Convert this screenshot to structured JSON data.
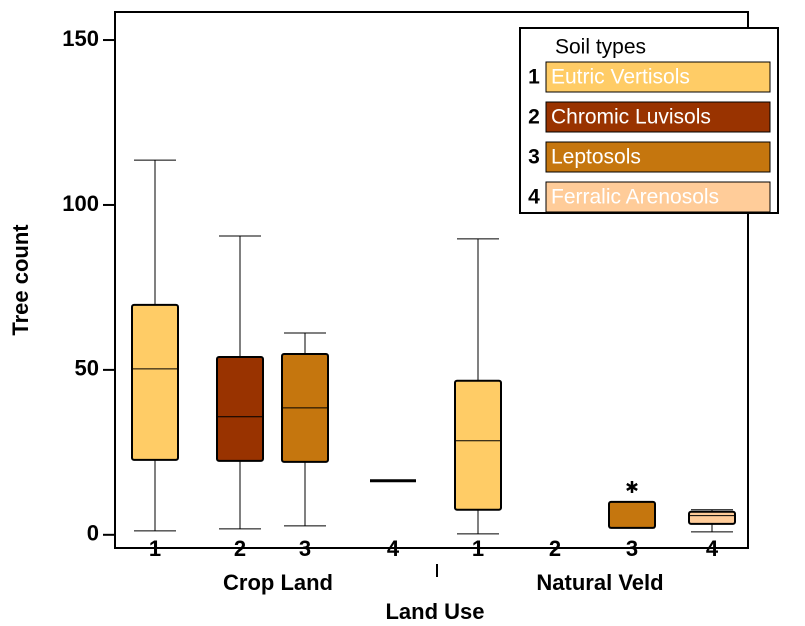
{
  "chart_data": {
    "type": "box",
    "x_label": "Land Use",
    "y_label": "Tree count",
    "ylim": [
      -4,
      158.5
    ],
    "yticks": [
      0,
      50,
      100,
      150
    ],
    "categories": [
      "1",
      "2",
      "3",
      "4",
      "1",
      "2",
      "3",
      "4"
    ],
    "group_labels": [
      "Crop Land",
      "Natural Veld"
    ],
    "boxes": [
      {
        "min": 1.2,
        "q1": 22.7,
        "median": 50.3,
        "q3": 69.7,
        "max": 113.6,
        "outliers": [],
        "color": "#ffcc66"
      },
      {
        "min": 1.8,
        "q1": 22.4,
        "median": 35.8,
        "q3": 53.9,
        "max": 90.6,
        "outliers": [],
        "color": "#993300"
      },
      {
        "min": 2.7,
        "q1": 22.1,
        "median": 38.5,
        "q3": 54.8,
        "max": 61.2,
        "outliers": [],
        "color": "#c5760e"
      },
      {
        "min": 16.4,
        "q1": 16.4,
        "median": 16.4,
        "q3": 16.4,
        "max": 16.4,
        "outliers": [],
        "color": "#ffcc99"
      },
      {
        "min": 0.3,
        "q1": 7.6,
        "median": 28.5,
        "q3": 46.7,
        "max": 89.7,
        "outliers": [],
        "color": "#ffcc66"
      },
      null,
      {
        "min": 2.1,
        "q1": 2.1,
        "median": 2.1,
        "q3": 10,
        "max": 10,
        "outliers": [
          14.5
        ],
        "color": "#c5760e"
      },
      {
        "min": 0.9,
        "q1": 3.3,
        "median": 5.8,
        "q3": 7,
        "max": 7.6,
        "outliers": [],
        "color": "#ffcc99"
      }
    ],
    "legend": {
      "title": "Soil types",
      "entries": [
        {
          "number": "1",
          "name": "Eutric Vertisols",
          "color": "#ffcc66"
        },
        {
          "number": "2",
          "name": "Chromic Luvisols",
          "color": "#993300"
        },
        {
          "number": "3",
          "name": "Leptosols",
          "color": "#c5760e"
        },
        {
          "number": "4",
          "name": "Ferralic Arenosols",
          "color": "#ffcc99"
        }
      ]
    }
  }
}
